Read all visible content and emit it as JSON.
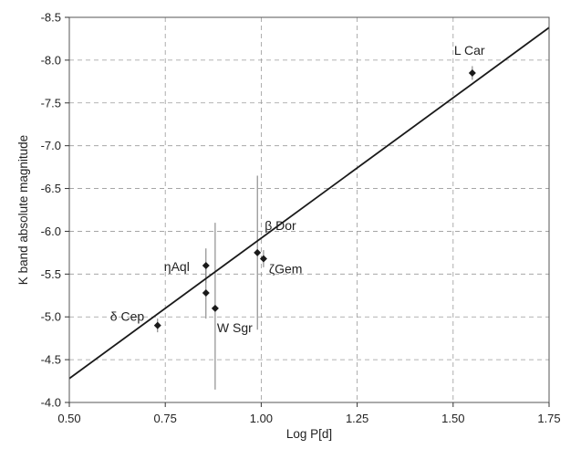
{
  "chart_data": {
    "type": "scatter",
    "xlabel": "Log P[d]",
    "ylabel": "K band absolute magnitude",
    "xlim": [
      0.5,
      1.75
    ],
    "ylim": [
      -4.0,
      -8.5
    ],
    "y_inverted": true,
    "grid": true,
    "x_ticks": [
      "0.50",
      "0.75",
      "1.00",
      "1.25",
      "1.50",
      "1.75"
    ],
    "y_ticks": [
      "-4.0",
      "-4.5",
      "-5.0",
      "-5.5",
      "-6.0",
      "-6.5",
      "-7.0",
      "-7.5",
      "-8.0",
      "-8.5"
    ],
    "points": [
      {
        "label": "δ Cep",
        "x": 0.73,
        "y": -4.9,
        "err": 0.08
      },
      {
        "label": "ηAql",
        "x": 0.856,
        "y": -5.6,
        "err": 0.2
      },
      {
        "label": "",
        "x": 0.856,
        "y": -5.28,
        "err": 0.3
      },
      {
        "label": "W Sgr",
        "x": 0.88,
        "y": -5.1,
        "err": 0.0
      },
      {
        "label": "β Dor",
        "x": 0.99,
        "y": -5.75,
        "err": 0.9
      },
      {
        "label": "ζGem",
        "x": 1.006,
        "y": -5.68,
        "err": 0.1
      },
      {
        "label": "L Car",
        "x": 1.55,
        "y": -7.85,
        "err": 0.08
      }
    ],
    "extra_error_bars": [
      {
        "x": 0.88,
        "y_low": -4.15,
        "y_high": -6.1
      }
    ],
    "fit_line": {
      "x": [
        0.5,
        1.75
      ],
      "y": [
        -4.28,
        -8.38
      ]
    }
  }
}
